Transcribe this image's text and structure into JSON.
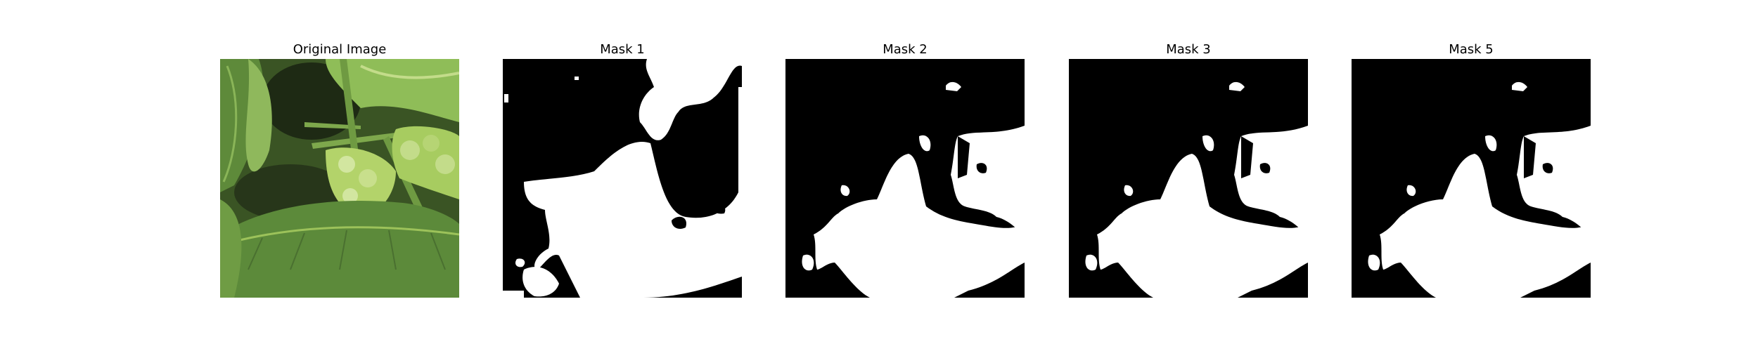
{
  "figure": {
    "panels": [
      {
        "title": "Original Image",
        "kind": "photo",
        "subject": "green leafy plants close-up"
      },
      {
        "title": "Mask 1",
        "kind": "mask"
      },
      {
        "title": "Mask 2",
        "kind": "mask"
      },
      {
        "title": "Mask 3",
        "kind": "mask"
      },
      {
        "title": "Mask 5",
        "kind": "mask"
      }
    ]
  },
  "colors": {
    "background": "#ffffff",
    "mask_foreground": "#ffffff",
    "mask_background": "#000000",
    "leaf_dark": "#2f4a1c",
    "leaf_mid": "#5e8a3a",
    "leaf_light": "#9cc25a",
    "leaf_pale": "#c3dc8a"
  }
}
